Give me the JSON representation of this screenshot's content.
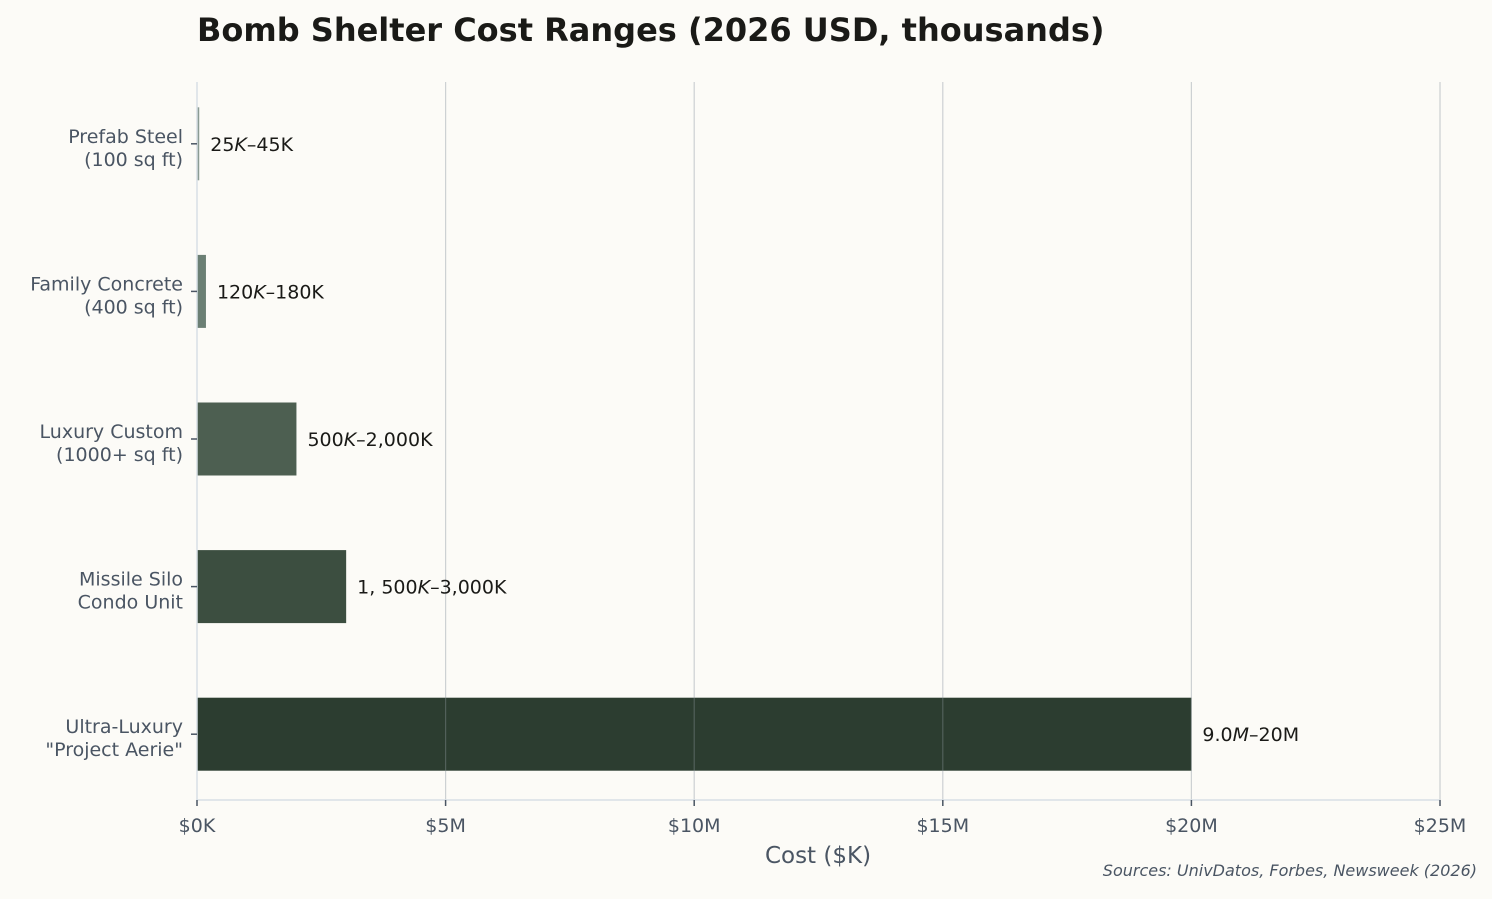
{
  "chart_data": {
    "type": "bar",
    "orientation": "horizontal",
    "title": "Bomb Shelter Cost Ranges (2026 USD, thousands)",
    "xlabel": "Cost ($K)",
    "ylabel": "",
    "xlim": [
      0,
      25000
    ],
    "xticks": [
      0,
      5000,
      10000,
      15000,
      20000,
      25000
    ],
    "xtick_labels": [
      "$0K",
      "$5M",
      "$10M",
      "$15M",
      "$20M",
      "$25M"
    ],
    "grid": true,
    "categories": [
      [
        "Prefab Steel",
        "(100 sq ft)"
      ],
      [
        "Family Concrete",
        "(400 sq ft)"
      ],
      [
        "Luxury Custom",
        "(1000+ sq ft)"
      ],
      [
        "Missile Silo",
        "Condo Unit"
      ],
      [
        "Ultra-Luxury",
        "\"Project Aerie\""
      ]
    ],
    "values": [
      45,
      180,
      2000,
      3000,
      20000
    ],
    "data_labels": [
      [
        "25",
        "K",
        "–45K"
      ],
      [
        "120",
        "K",
        "–180K"
      ],
      [
        "500",
        "K",
        "–2,000K"
      ],
      [
        "1, 500",
        "K",
        "–3,000K"
      ],
      [
        "9.0",
        "M",
        "–20M"
      ]
    ],
    "colors": [
      "#8a9b93",
      "#6b7f74",
      "#4d5f51",
      "#3c4e40",
      "#2c3d30"
    ],
    "source": "Sources: UnivDatos, Forbes, Newsweek (2026)"
  }
}
